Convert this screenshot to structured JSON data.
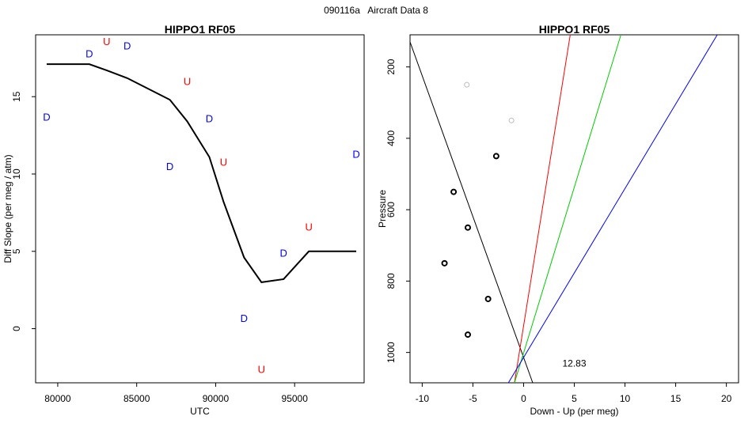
{
  "page": {
    "figure_id": "090116a",
    "figure_title": "Aircraft Data 8"
  },
  "chart_data": [
    {
      "type": "scatter",
      "title": "HIPPO1 RF05",
      "xlabel": "UTC",
      "ylabel": "Diff Slope (per meg / atm)",
      "xlim": [
        78600,
        99400
      ],
      "ylim": [
        -3.5,
        19.0
      ],
      "xticks": [
        80000,
        85000,
        90000,
        95000
      ],
      "yticks": [
        0,
        5,
        10,
        15
      ],
      "points": [
        {
          "x": 79300,
          "y": 13.7,
          "label": "D",
          "color": "#0000ff"
        },
        {
          "x": 82000,
          "y": 17.8,
          "label": "D",
          "color": "#0000ff"
        },
        {
          "x": 83100,
          "y": 18.6,
          "label": "U",
          "color": "#ff0000"
        },
        {
          "x": 84400,
          "y": 18.3,
          "label": "D",
          "color": "#0000ff"
        },
        {
          "x": 87100,
          "y": 10.5,
          "label": "D",
          "color": "#0000ff"
        },
        {
          "x": 88200,
          "y": 16.0,
          "label": "U",
          "color": "#ff0000"
        },
        {
          "x": 89600,
          "y": 13.6,
          "label": "D",
          "color": "#0000ff"
        },
        {
          "x": 90500,
          "y": 10.8,
          "label": "U",
          "color": "#ff0000"
        },
        {
          "x": 91800,
          "y": 0.7,
          "label": "D",
          "color": "#0000ff"
        },
        {
          "x": 92900,
          "y": -2.6,
          "label": "U",
          "color": "#ff0000"
        },
        {
          "x": 94300,
          "y": 4.9,
          "label": "D",
          "color": "#0000ff"
        },
        {
          "x": 95900,
          "y": 6.6,
          "label": "U",
          "color": "#ff0000"
        },
        {
          "x": 98900,
          "y": 11.3,
          "label": "D",
          "color": "#0000ff"
        }
      ],
      "smooth_line": {
        "color": "#000000",
        "x": [
          79300,
          82000,
          83100,
          84400,
          87100,
          88200,
          89600,
          90500,
          91800,
          92900,
          94300,
          95900,
          98900
        ],
        "y": [
          17.1,
          17.1,
          16.7,
          16.2,
          14.8,
          13.4,
          11.1,
          8.2,
          4.6,
          3.0,
          3.2,
          5.0,
          5.0
        ]
      }
    },
    {
      "type": "scatter",
      "title": "HIPPO1 RF05",
      "xlabel": "Down - Up (per meg)",
      "ylabel": "Pressure",
      "xlim": [
        -11.2,
        21.2
      ],
      "ylim_reversed": [
        1085,
        110
      ],
      "xticks": [
        -10,
        -5,
        0,
        5,
        10,
        15,
        20
      ],
      "yticks": [
        200,
        400,
        600,
        800,
        1000
      ],
      "annotation": "12.83",
      "annotation_pos_data": {
        "x": 5.0,
        "y": 1040
      },
      "points": [
        {
          "x": -5.6,
          "y": 250,
          "color": "#bbbbbb"
        },
        {
          "x": -1.2,
          "y": 350,
          "color": "#bbbbbb"
        },
        {
          "x": -2.7,
          "y": 450,
          "color": "#000000"
        },
        {
          "x": -6.9,
          "y": 550,
          "color": "#000000"
        },
        {
          "x": -5.5,
          "y": 650,
          "color": "#000000"
        },
        {
          "x": -7.8,
          "y": 750,
          "color": "#000000"
        },
        {
          "x": -3.5,
          "y": 850,
          "color": "#000000"
        },
        {
          "x": -5.5,
          "y": 950,
          "color": "#000000"
        }
      ],
      "lines": [
        {
          "color": "#000000",
          "x": [
            -11.2,
            0.9
          ],
          "y": [
            130,
            1085
          ]
        },
        {
          "color": "#ff0000",
          "x": [
            -0.9,
            4.6
          ],
          "y": [
            1085,
            110
          ]
        },
        {
          "color": "#00cc00",
          "x": [
            -0.9,
            9.6
          ],
          "y": [
            1085,
            110
          ]
        },
        {
          "color": "#0000ff",
          "x": [
            -1.5,
            19.1
          ],
          "y": [
            1085,
            110
          ]
        }
      ]
    }
  ]
}
